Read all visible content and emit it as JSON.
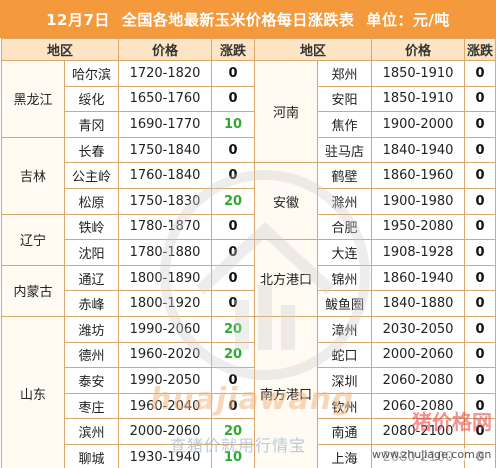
{
  "title": {
    "date": "12月7日",
    "text": "全国各地最新玉米价格每日涨跌表",
    "unit": "单位：元/吨"
  },
  "headers": {
    "region": "地区",
    "price": "价格",
    "change": "涨跌"
  },
  "left": {
    "groups": [
      {
        "name": "黑龙江",
        "rows": [
          {
            "city": "哈尔滨",
            "price": "1720-1820",
            "change": "0"
          },
          {
            "city": "绥化",
            "price": "1650-1760",
            "change": "0"
          },
          {
            "city": "青冈",
            "price": "1690-1770",
            "change": "10"
          }
        ]
      },
      {
        "name": "吉林",
        "rows": [
          {
            "city": "长春",
            "price": "1750-1840",
            "change": "0"
          },
          {
            "city": "公主岭",
            "price": "1760-1840",
            "change": "0"
          },
          {
            "city": "松原",
            "price": "1750-1830",
            "change": "20"
          }
        ]
      },
      {
        "name": "辽宁",
        "rows": [
          {
            "city": "铁岭",
            "price": "1780-1870",
            "change": "0"
          },
          {
            "city": "沈阳",
            "price": "1780-1880",
            "change": "0"
          }
        ]
      },
      {
        "name": "内蒙古",
        "rows": [
          {
            "city": "通辽",
            "price": "1800-1890",
            "change": "0"
          },
          {
            "city": "赤峰",
            "price": "1800-1920",
            "change": "0"
          }
        ]
      },
      {
        "name": "山东",
        "rows": [
          {
            "city": "潍坊",
            "price": "1990-2060",
            "change": "20"
          },
          {
            "city": "德州",
            "price": "1960-2020",
            "change": "20"
          },
          {
            "city": "泰安",
            "price": "1990-2050",
            "change": "0"
          },
          {
            "city": "枣庄",
            "price": "1960-2040",
            "change": "0"
          },
          {
            "city": "滨州",
            "price": "2000-2060",
            "change": "20"
          },
          {
            "city": "聊城",
            "price": "1930-1940",
            "change": "10"
          }
        ]
      }
    ]
  },
  "right": {
    "groups": [
      {
        "name": "河南",
        "rows": [
          {
            "city": "郑州",
            "price": "1850-1910",
            "change": "0"
          },
          {
            "city": "安阳",
            "price": "1850-1910",
            "change": "0"
          },
          {
            "city": "焦作",
            "price": "1900-2000",
            "change": "0"
          },
          {
            "city": "驻马店",
            "price": "1840-1940",
            "change": "0"
          }
        ]
      },
      {
        "name": "安徽",
        "rows": [
          {
            "city": "鹤壁",
            "price": "1860-1960",
            "change": "0"
          },
          {
            "city": "滁州",
            "price": "1900-1980",
            "change": "0"
          },
          {
            "city": "合肥",
            "price": "1950-2080",
            "change": "0"
          }
        ]
      },
      {
        "name": "北方港口",
        "rows": [
          {
            "city": "大连",
            "price": "1908-1928",
            "change": "0"
          },
          {
            "city": "锦州",
            "price": "1860-1940",
            "change": "0"
          },
          {
            "city": "鲅鱼圈",
            "price": "1840-1880",
            "change": "0"
          }
        ]
      },
      {
        "name": "南方港口",
        "rows": [
          {
            "city": "漳州",
            "price": "2030-2050",
            "change": "0"
          },
          {
            "city": "蛇口",
            "price": "2000-2060",
            "change": "0"
          },
          {
            "city": "深圳",
            "price": "2060-2080",
            "change": "0"
          },
          {
            "city": "钦州",
            "price": "2060-2080",
            "change": "0"
          },
          {
            "city": "南通",
            "price": "2080-2100",
            "change": "0"
          },
          {
            "city": "上海",
            "price": "2080-2100",
            "change": "0"
          }
        ]
      }
    ]
  },
  "watermark": {
    "brand": "huajiawang",
    "slogan": "查猪价就用行情宝",
    "site_cn": "猪价格网",
    "site_en": "www.zhujiage.com.cn"
  },
  "colors": {
    "title_bg": "#f59a3c",
    "header_bg": "#fde4c4",
    "border": "#d9a76a",
    "up": "#2eaa2e"
  }
}
